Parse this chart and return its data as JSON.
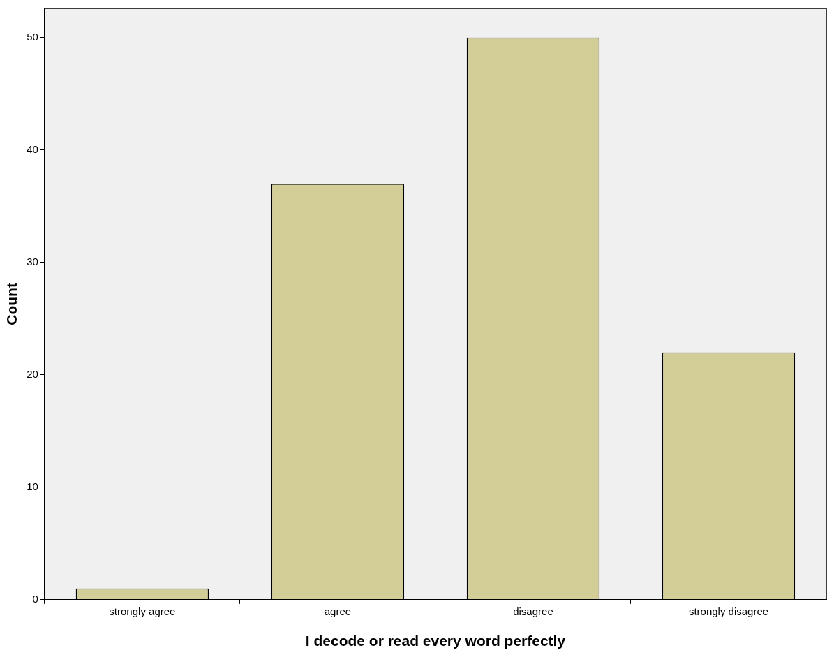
{
  "chart_data": {
    "type": "bar",
    "xlabel": "I decode or read every word perfectly",
    "ylabel": "Count",
    "categories": [
      "strongly agree",
      "agree",
      "disagree",
      "strongly disagree"
    ],
    "values": [
      1,
      37,
      50,
      22
    ],
    "color": "#d3ce97",
    "ylim": [
      0,
      52.6
    ],
    "yticks": [
      0,
      10,
      20,
      30,
      40,
      50
    ],
    "grid": false,
    "legend": false
  }
}
